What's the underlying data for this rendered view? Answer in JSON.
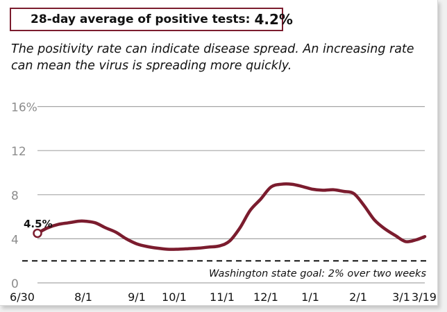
{
  "header": {
    "label": "28-day average of positive tests:",
    "value": "4.2%"
  },
  "description": "The positivity rate can indicate disease spread. An increasing rate can mean the virus is spreading more quickly.",
  "colors": {
    "series": "#7b1c2e",
    "grid": "#a6a6a6",
    "axis_text": "#8c8c8c",
    "dark_text": "#111111"
  },
  "chart_data": {
    "type": "line",
    "title": "",
    "xlabel": "",
    "ylabel": "",
    "x_ticks": [
      "6/30",
      "8/1",
      "9/1",
      "10/1",
      "11/1",
      "12/1",
      "1/1",
      "2/1",
      "3/1",
      "3/19"
    ],
    "y_ticks": [
      "0",
      "4",
      "8",
      "12",
      "16%"
    ],
    "y_tick_values": [
      0,
      4,
      8,
      12,
      16
    ],
    "ylim": [
      0,
      16
    ],
    "grid": true,
    "start_label": "4.5%",
    "reference_line": {
      "value": 2,
      "label": "Washington state goal: 2% over two weeks"
    },
    "series": [
      {
        "points": [
          [
            "2020-06-30",
            4.5
          ],
          [
            "2020-07-07",
            5.0
          ],
          [
            "2020-07-14",
            5.3
          ],
          [
            "2020-07-21",
            5.45
          ],
          [
            "2020-07-28",
            5.6
          ],
          [
            "2020-08-01",
            5.6
          ],
          [
            "2020-08-08",
            5.45
          ],
          [
            "2020-08-15",
            5.0
          ],
          [
            "2020-08-22",
            4.6
          ],
          [
            "2020-08-29",
            4.0
          ],
          [
            "2020-09-05",
            3.55
          ],
          [
            "2020-09-12",
            3.3
          ],
          [
            "2020-09-19",
            3.15
          ],
          [
            "2020-09-26",
            3.05
          ],
          [
            "2020-10-03",
            3.05
          ],
          [
            "2020-10-10",
            3.1
          ],
          [
            "2020-10-17",
            3.15
          ],
          [
            "2020-10-24",
            3.25
          ],
          [
            "2020-10-31",
            3.35
          ],
          [
            "2020-11-07",
            3.8
          ],
          [
            "2020-11-14",
            5.0
          ],
          [
            "2020-11-21",
            6.6
          ],
          [
            "2020-11-28",
            7.6
          ],
          [
            "2020-12-05",
            8.7
          ],
          [
            "2020-12-12",
            8.95
          ],
          [
            "2020-12-19",
            8.95
          ],
          [
            "2020-12-26",
            8.75
          ],
          [
            "2021-01-02",
            8.5
          ],
          [
            "2021-01-09",
            8.4
          ],
          [
            "2021-01-16",
            8.45
          ],
          [
            "2021-01-23",
            8.3
          ],
          [
            "2021-01-30",
            8.1
          ],
          [
            "2021-02-06",
            7.0
          ],
          [
            "2021-02-13",
            5.7
          ],
          [
            "2021-02-20",
            4.9
          ],
          [
            "2021-02-27",
            4.3
          ],
          [
            "2021-03-06",
            3.75
          ],
          [
            "2021-03-13",
            3.9
          ],
          [
            "2021-03-19",
            4.2
          ]
        ]
      }
    ]
  }
}
